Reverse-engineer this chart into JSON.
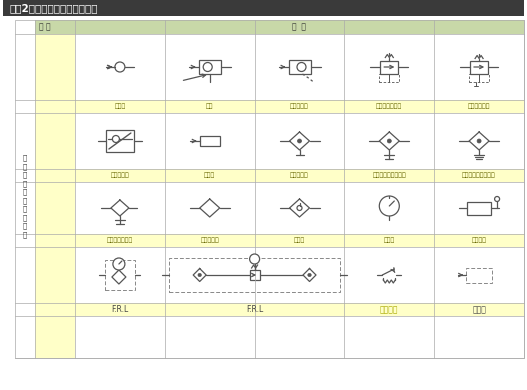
{
  "title": "【表2】主要气动元件及其符号",
  "col_header_left": "名 称",
  "col_header_right": "符  号",
  "left_label": [
    "只",
    "有",
    "阀",
    "构",
    "造",
    "的",
    "气",
    "动",
    "元",
    "件"
  ],
  "row1_labels": [
    "单向阀",
    "梭阀",
    "快速排气阀",
    "减压阀非溢流式",
    "减压阀溢流式"
  ],
  "row2_labels": [
    "单向节流阀",
    "消音器",
    "过滤分水器",
    "过滤分水器手动排水",
    "过滤分水器自动排水"
  ],
  "row3_labels": [
    "除油器手动排出",
    "空气干燥器",
    "油雾器",
    "压力表",
    "限位开关"
  ],
  "row4_labels": [
    "F.R.L",
    "F.R.L",
    "压力开关",
    "排气用"
  ],
  "title_bg": "#3a3a3a",
  "title_fg": "#ffffff",
  "header_bg": "#c8d8a8",
  "label_bg": "#ffffc8",
  "cell_bg": "#ffffff",
  "name_col_bg": "#ffffc8",
  "left_col_bg": "#ffffff",
  "grid_color": "#aaaaaa",
  "sym_color": "#555555",
  "label_color": "#666600",
  "label_color2": "#aaaa00"
}
